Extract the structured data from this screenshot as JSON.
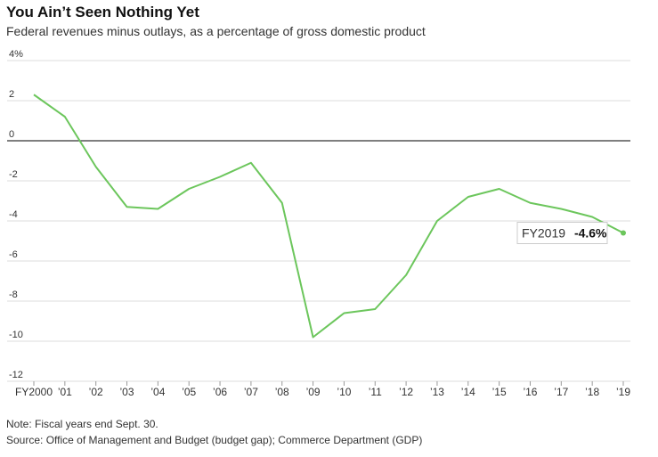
{
  "header": {
    "title": "You Ain’t Seen Nothing Yet",
    "subtitle": "Federal revenues minus outlays, as a percentage of gross domestic product"
  },
  "footer": {
    "note": "Note: Fiscal years end Sept. 30.",
    "source": "Source: Office of Management and Budget (budget gap); Commerce Department (GDP)"
  },
  "colors": {
    "line": "#6cc65c",
    "grid": "#dddddd",
    "zero_line": "#333333",
    "text": "#333333"
  },
  "chart_data": {
    "type": "line",
    "title": "You Ain’t Seen Nothing Yet",
    "subtitle": "Federal revenues minus outlays, as a percentage of gross domestic product",
    "xlabel": "",
    "ylabel": "",
    "ylim": [
      -12,
      4
    ],
    "yticks": [
      4,
      2,
      0,
      -2,
      -4,
      -6,
      -8,
      -10,
      -12
    ],
    "ytick_labels": [
      "4%",
      "2",
      "0",
      "-2",
      "-4",
      "-6",
      "-8",
      "-10",
      "-12"
    ],
    "categories": [
      "FY2000",
      "’01",
      "’02",
      "’03",
      "’04",
      "’05",
      "’06",
      "’07",
      "’08",
      "’09",
      "’10",
      "’11",
      "’12",
      "’13",
      "’14",
      "’15",
      "’16",
      "’17",
      "’18",
      "’19"
    ],
    "series": [
      {
        "values": [
          2.3,
          1.2,
          -1.3,
          -3.3,
          -3.4,
          -2.4,
          -1.8,
          -1.1,
          -3.1,
          -9.8,
          -8.6,
          -8.4,
          -6.7,
          -4.0,
          -2.8,
          -2.4,
          -3.1,
          -3.4,
          -3.8,
          -4.6
        ]
      }
    ],
    "grid": true,
    "annotation": {
      "label": "FY2019",
      "value": "-4.6%"
    }
  }
}
